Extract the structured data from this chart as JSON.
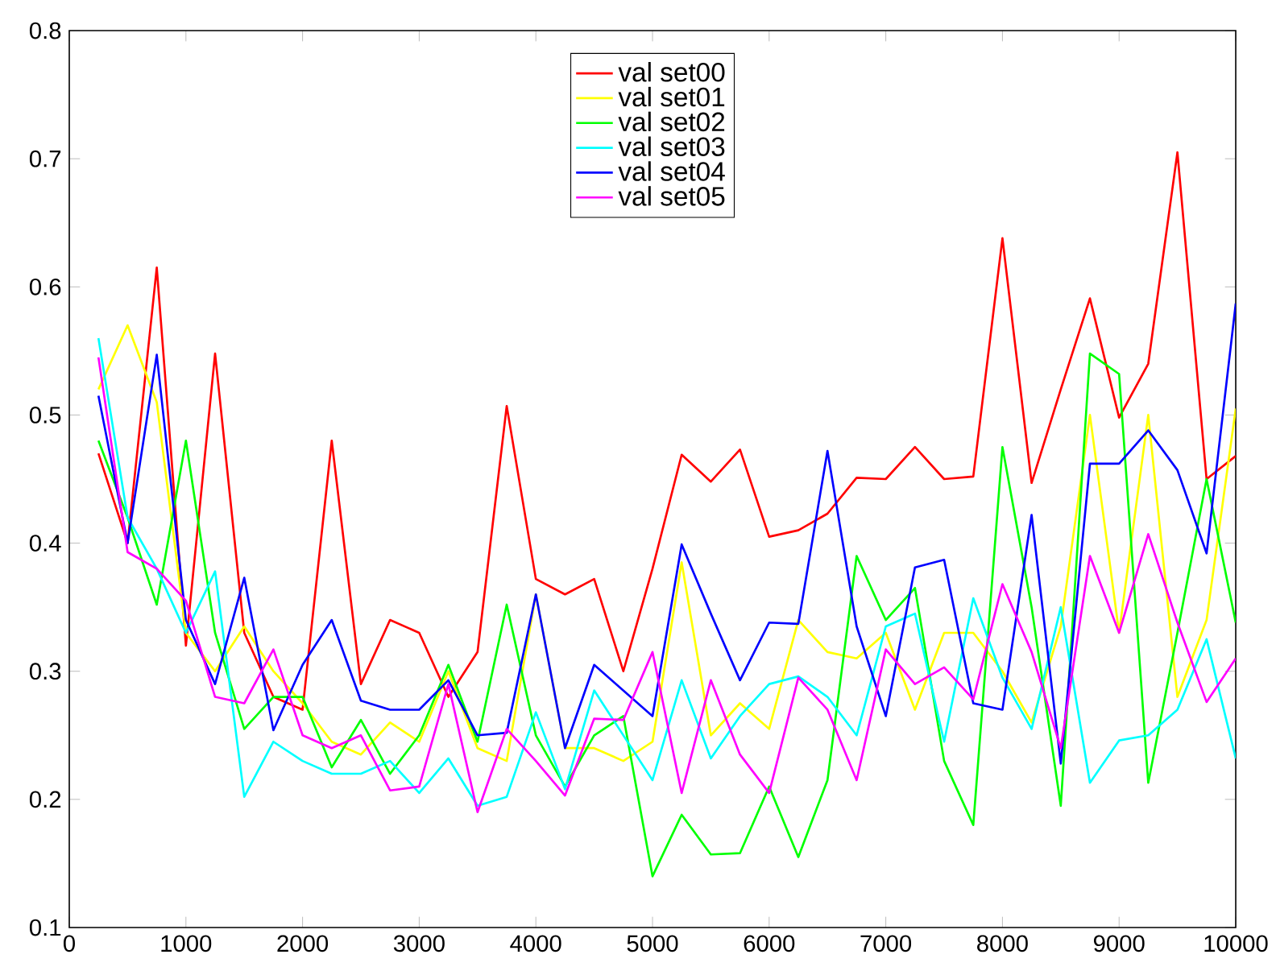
{
  "chart_data": {
    "type": "line",
    "x": [
      250,
      500,
      750,
      1000,
      1250,
      1500,
      1750,
      2000,
      2250,
      2500,
      2750,
      3000,
      3250,
      3500,
      3750,
      4000,
      4250,
      4500,
      4750,
      5000,
      5250,
      5500,
      5750,
      6000,
      6250,
      6500,
      6750,
      7000,
      7250,
      7500,
      7750,
      8000,
      8250,
      8500,
      8750,
      9000,
      9250,
      9500,
      9750,
      10000
    ],
    "xlim": [
      0,
      10000
    ],
    "xticks": [
      0,
      1000,
      2000,
      3000,
      4000,
      5000,
      6000,
      7000,
      8000,
      9000,
      10000
    ],
    "ylim": [
      0.1,
      0.8
    ],
    "yticks": [
      0.1,
      0.2,
      0.3,
      0.4,
      0.5,
      0.6,
      0.7,
      0.8
    ],
    "grid": false,
    "legend": "top",
    "marker": "none",
    "line_style": "solid",
    "series": [
      {
        "name": "val set00",
        "color": "#ff0000",
        "values": [
          0.47,
          0.4,
          0.615,
          0.32,
          0.548,
          0.33,
          0.28,
          0.27,
          0.48,
          0.29,
          0.34,
          0.33,
          0.28,
          0.315,
          0.507,
          0.372,
          0.36,
          0.372,
          0.3,
          0.38,
          0.469,
          0.448,
          0.473,
          0.405,
          0.41,
          0.423,
          0.451,
          0.45,
          0.475,
          0.45,
          0.452,
          0.638,
          0.447,
          0.52,
          0.591,
          0.498,
          0.54,
          0.705,
          0.45,
          0.468
        ]
      },
      {
        "name": "val set01",
        "color": "#ffff00",
        "values": [
          0.52,
          0.57,
          0.51,
          0.33,
          0.3,
          0.335,
          0.3,
          0.275,
          0.245,
          0.235,
          0.26,
          0.245,
          0.3,
          0.24,
          0.23,
          0.36,
          0.24,
          0.24,
          0.23,
          0.245,
          0.385,
          0.25,
          0.275,
          0.255,
          0.34,
          0.315,
          0.31,
          0.33,
          0.27,
          0.33,
          0.33,
          0.3,
          0.26,
          0.335,
          0.5,
          0.33,
          0.5,
          0.28,
          0.34,
          0.505
        ]
      },
      {
        "name": "val set02",
        "color": "#00ff00",
        "values": [
          0.48,
          0.42,
          0.352,
          0.48,
          0.33,
          0.255,
          0.28,
          0.28,
          0.225,
          0.262,
          0.22,
          0.25,
          0.305,
          0.245,
          0.352,
          0.25,
          0.21,
          0.25,
          0.265,
          0.14,
          0.188,
          0.157,
          0.158,
          0.21,
          0.155,
          0.215,
          0.39,
          0.34,
          0.365,
          0.23,
          0.18,
          0.475,
          0.35,
          0.195,
          0.548,
          0.532,
          0.213,
          0.33,
          0.45,
          0.338
        ]
      },
      {
        "name": "val set03",
        "color": "#00ffff",
        "values": [
          0.56,
          0.42,
          0.38,
          0.33,
          0.378,
          0.202,
          0.245,
          0.23,
          0.22,
          0.22,
          0.23,
          0.205,
          0.232,
          0.195,
          0.202,
          0.268,
          0.208,
          0.285,
          0.25,
          0.215,
          0.293,
          0.232,
          0.265,
          0.29,
          0.296,
          0.28,
          0.25,
          0.335,
          0.345,
          0.245,
          0.357,
          0.295,
          0.255,
          0.35,
          0.213,
          0.246,
          0.25,
          0.27,
          0.325,
          0.232
        ]
      },
      {
        "name": "val set04",
        "color": "#0000ff",
        "values": [
          0.515,
          0.4,
          0.547,
          0.34,
          0.29,
          0.373,
          0.254,
          0.305,
          0.34,
          0.277,
          0.27,
          0.27,
          0.293,
          0.25,
          0.252,
          0.36,
          0.24,
          0.305,
          0.285,
          0.265,
          0.399,
          0.345,
          0.293,
          0.338,
          0.337,
          0.472,
          0.335,
          0.265,
          0.381,
          0.387,
          0.275,
          0.27,
          0.422,
          0.228,
          0.462,
          0.462,
          0.488,
          0.457,
          0.392,
          0.587
        ]
      },
      {
        "name": "val set05",
        "color": "#ff00ff",
        "values": [
          0.545,
          0.393,
          0.38,
          0.355,
          0.28,
          0.275,
          0.317,
          0.25,
          0.24,
          0.25,
          0.207,
          0.21,
          0.29,
          0.19,
          0.255,
          0.23,
          0.203,
          0.263,
          0.262,
          0.315,
          0.205,
          0.293,
          0.235,
          0.205,
          0.295,
          0.27,
          0.215,
          0.317,
          0.29,
          0.303,
          0.278,
          0.368,
          0.315,
          0.24,
          0.39,
          0.33,
          0.407,
          0.338,
          0.276,
          0.31
        ]
      }
    ]
  }
}
